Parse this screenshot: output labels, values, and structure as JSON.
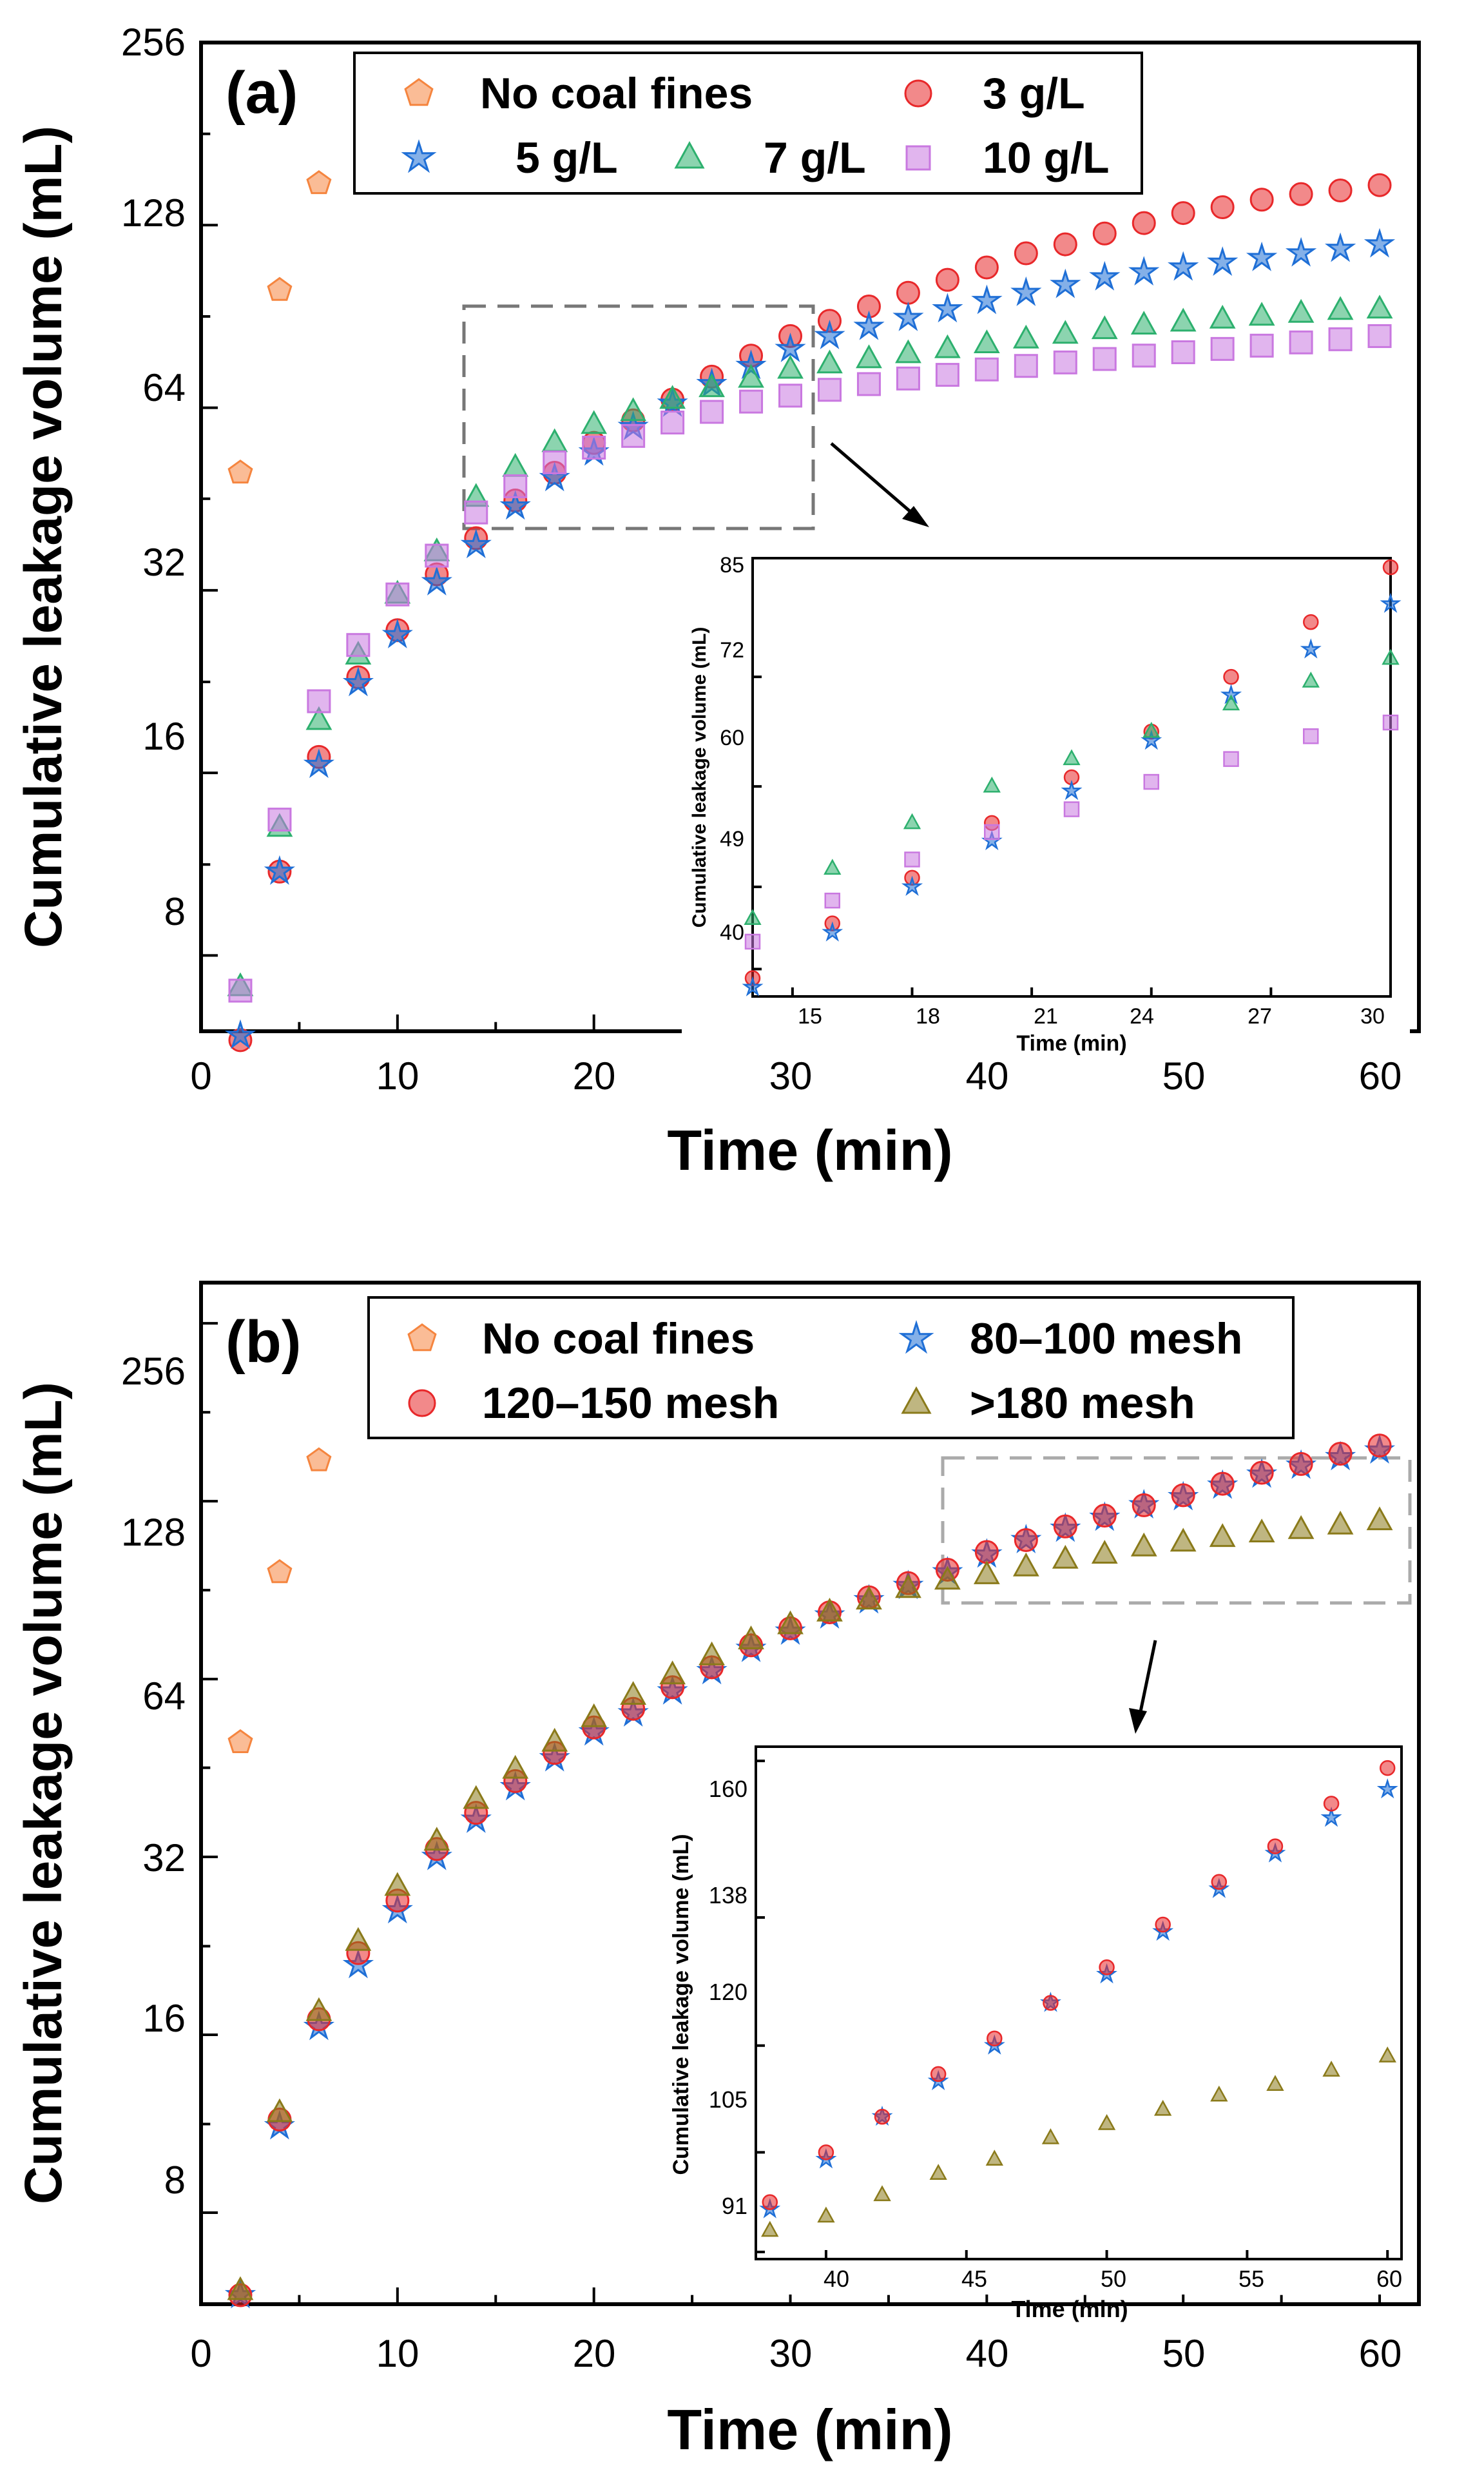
{
  "chart_data": [
    {
      "type": "scatter",
      "panel_label": "(a)",
      "xlabel": "Time (min)",
      "ylabel": "Cumulative leakage volume (mL)",
      "xlim": [
        0,
        62
      ],
      "ylim": [
        6,
        256
      ],
      "yscale": "log2",
      "xticks": [
        "0",
        "10",
        "20",
        "30",
        "40",
        "50",
        "60"
      ],
      "yticks": [
        "8",
        "16",
        "32",
        "64",
        "128",
        "256"
      ],
      "series": [
        {
          "name": "No coal fines",
          "marker": "pentagon",
          "color": "#f5853f",
          "x": [
            2,
            4,
            6
          ],
          "y": [
            50,
            100,
            150
          ]
        },
        {
          "name": "3 g/L",
          "marker": "circle",
          "color": "#e8282a",
          "x": [
            2,
            4,
            6,
            8,
            10,
            12,
            14,
            16,
            18,
            20,
            22,
            24,
            26,
            28,
            30,
            32,
            34,
            36,
            38,
            40,
            42,
            44,
            46,
            48,
            50,
            52,
            54,
            56,
            58,
            60
          ],
          "y": [
            5.8,
            11,
            17,
            23,
            27.5,
            34,
            39,
            45,
            50,
            56,
            61,
            66,
            72,
            78,
            84,
            89,
            94,
            99,
            104,
            109,
            115,
            119,
            124,
            129,
            134,
            137,
            141,
            144,
            146,
            149
          ]
        },
        {
          "name": "5 g/L",
          "marker": "star",
          "color": "#1f6fd6",
          "x": [
            2,
            4,
            6,
            8,
            10,
            12,
            14,
            16,
            18,
            20,
            22,
            24,
            26,
            28,
            30,
            32,
            34,
            36,
            38,
            40,
            42,
            44,
            46,
            48,
            50,
            52,
            54,
            56,
            58,
            60
          ],
          "y": [
            5.9,
            11,
            16.5,
            22.5,
            27,
            33,
            38,
            44,
            49,
            54,
            59.5,
            65,
            70,
            75,
            80,
            84,
            87,
            90,
            93,
            96,
            99,
            102,
            105,
            107,
            109,
            111,
            113,
            115,
            117,
            119
          ]
        },
        {
          "name": "7 g/L",
          "marker": "triangle",
          "color": "#2db06e",
          "x": [
            2,
            4,
            6,
            8,
            10,
            12,
            14,
            16,
            18,
            20,
            22,
            24,
            26,
            28,
            30,
            32,
            34,
            36,
            38,
            40,
            42,
            44,
            46,
            48,
            50,
            52,
            54,
            56,
            58,
            60
          ],
          "y": [
            7.1,
            13,
            19.5,
            25,
            31.5,
            37,
            45.5,
            51,
            56,
            60,
            63,
            66,
            69,
            71.5,
            74,
            75.5,
            77,
            78.5,
            80,
            81.5,
            83,
            84.5,
            86,
            87.5,
            88.5,
            89.5,
            90.5,
            91.5,
            92.5,
            93
          ]
        },
        {
          "name": "10 g/L",
          "marker": "square",
          "color": "#c978e0",
          "x": [
            2,
            4,
            6,
            8,
            10,
            12,
            14,
            16,
            18,
            20,
            22,
            24,
            26,
            28,
            30,
            32,
            34,
            36,
            38,
            40,
            42,
            44,
            46,
            48,
            50,
            52,
            54,
            56,
            58,
            60
          ],
          "y": [
            7,
            13.4,
            21,
            26,
            31.5,
            36.5,
            43,
            47.5,
            52,
            55,
            57.5,
            60.5,
            63,
            65.5,
            67,
            68.5,
            70,
            71.5,
            72.5,
            74,
            75,
            76,
            77,
            78,
            79,
            80,
            81,
            82,
            83,
            84
          ]
        }
      ],
      "inset": {
        "xlabel": "Time (min)",
        "ylabel": "Cumulative leakage volume (mL)",
        "xlim": [
          14,
          30
        ],
        "ylim": [
          37,
          85
        ],
        "xticks": [
          "15",
          "18",
          "21",
          "24",
          "27",
          "30"
        ],
        "yticks": [
          "40",
          "49",
          "60",
          "72",
          "85"
        ]
      }
    },
    {
      "type": "scatter",
      "panel_label": "(b)",
      "xlabel": "Time (min)",
      "ylabel": "Cumulative leakage volume (mL)",
      "xlim": [
        0,
        62
      ],
      "ylim": [
        5.6,
        300
      ],
      "yscale": "log2",
      "xticks": [
        "0",
        "10",
        "20",
        "30",
        "40",
        "50",
        "60"
      ],
      "yticks": [
        "8",
        "16",
        "32",
        "64",
        "128",
        "256"
      ],
      "series": [
        {
          "name": "No coal fines",
          "marker": "pentagon",
          "color": "#f5853f",
          "x": [
            2,
            4,
            6
          ],
          "y": [
            50,
            97,
            150
          ]
        },
        {
          "name": "80–100 mesh",
          "marker": "star",
          "color": "#1f6fd6",
          "x": [
            2,
            4,
            6,
            8,
            10,
            12,
            14,
            16,
            18,
            20,
            22,
            24,
            26,
            28,
            30,
            32,
            34,
            36,
            38,
            40,
            42,
            44,
            46,
            48,
            50,
            52,
            54,
            56,
            58,
            60
          ],
          "y": [
            5.8,
            11.2,
            16.5,
            21,
            26,
            32,
            37,
            42,
            47,
            52,
            56,
            61,
            66,
            72,
            77,
            82,
            87,
            92,
            97,
            104,
            110,
            115,
            120,
            126,
            130,
            136,
            142,
            147,
            152,
            156
          ]
        },
        {
          "name": "120–150 mesh",
          "marker": "circle",
          "color": "#e8282a",
          "x": [
            2,
            4,
            6,
            8,
            10,
            12,
            14,
            16,
            18,
            20,
            22,
            24,
            26,
            28,
            30,
            32,
            34,
            36,
            38,
            40,
            42,
            44,
            46,
            48,
            50,
            52,
            54,
            56,
            58,
            60
          ],
          "y": [
            5.8,
            11.5,
            17,
            22,
            27,
            33,
            38,
            43,
            48,
            53,
            57,
            62,
            67,
            73,
            78,
            83,
            88,
            93,
            98,
            105,
            110,
            116,
            121,
            126,
            131,
            137,
            143,
            148,
            154,
            159
          ]
        },
        {
          "name": ">180 mesh",
          "marker": "triangle",
          "color": "#8a7a1a",
          "x": [
            2,
            4,
            6,
            8,
            10,
            12,
            14,
            16,
            18,
            20,
            22,
            24,
            26,
            28,
            30,
            32,
            34,
            36,
            38,
            40,
            42,
            44,
            46,
            48,
            50,
            52,
            54,
            56,
            58,
            60
          ],
          "y": [
            5.9,
            11.8,
            17.5,
            23,
            28.5,
            34,
            40,
            45,
            50,
            55,
            60,
            65,
            70,
            74.5,
            79,
            83,
            87,
            91,
            94,
            96,
            99,
            102,
            104,
            107,
            109,
            111,
            113,
            114.5,
            116.5,
            118.5
          ]
        }
      ],
      "inset": {
        "xlabel": "Time (min)",
        "ylabel": "Cumulative leakage volume (mL)",
        "xlim": [
          37.5,
          60.5
        ],
        "ylim": [
          90,
          162
        ],
        "xticks": [
          "40",
          "45",
          "50",
          "55",
          "60"
        ],
        "yticks": [
          "91",
          "105",
          "120",
          "138",
          "160"
        ]
      }
    }
  ]
}
